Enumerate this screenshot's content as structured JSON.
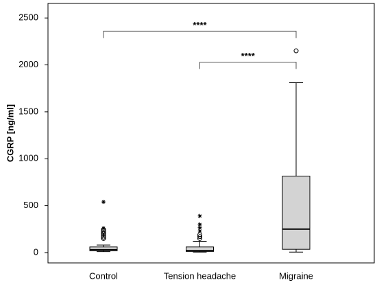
{
  "chart_data": {
    "type": "box",
    "y_label": "CGRP [ng/ml]",
    "categories": [
      "Control",
      "Tension headache",
      "Migraine"
    ],
    "whisker_low": [
      10,
      5,
      5
    ],
    "q1": [
      20,
      12,
      35
    ],
    "median": [
      30,
      20,
      250
    ],
    "q3": [
      60,
      60,
      815
    ],
    "whisker_high": [
      80,
      120,
      1810
    ],
    "outliers": [
      [
        150,
        165,
        180,
        200,
        215,
        230,
        245
      ],
      [
        150,
        170,
        190
      ],
      [
        2150
      ]
    ],
    "extremes": [
      [
        260,
        540
      ],
      [
        230,
        265,
        300,
        390
      ],
      []
    ],
    "color": "#d3d3d3",
    "ylim": [
      -110,
      2655
    ],
    "yticks": [
      0,
      500,
      1000,
      1500,
      2000,
      2500
    ],
    "grid": false,
    "annotations": [
      {
        "text": "****",
        "from": 0,
        "to": 2,
        "y": 2360
      },
      {
        "text": "****",
        "from": 1,
        "to": 2,
        "y": 2030
      }
    ]
  }
}
